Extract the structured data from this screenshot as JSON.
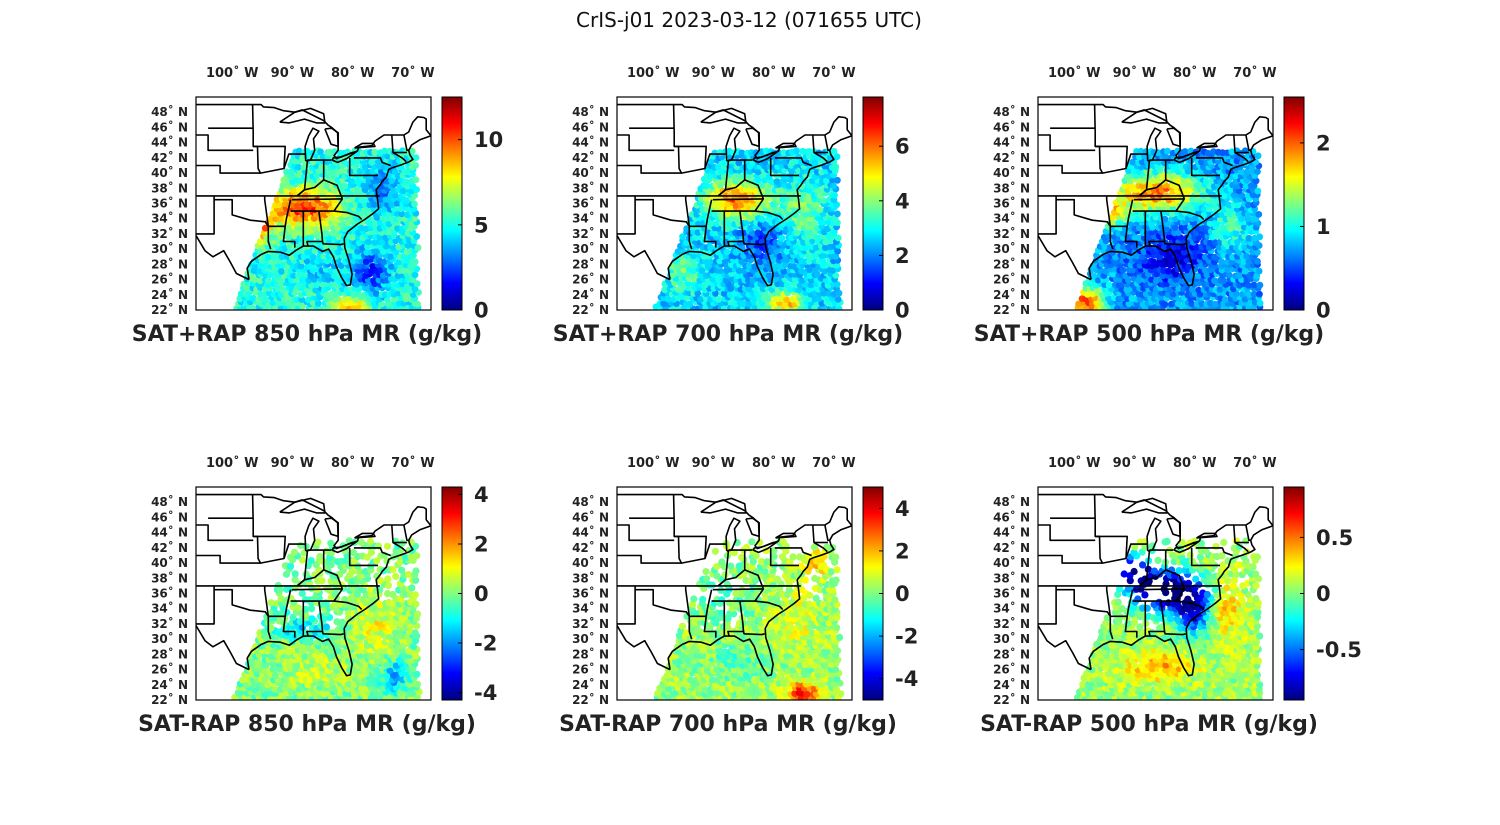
{
  "figure": {
    "title": "CrIS-j01 2023-03-12 (071655 UTC)"
  },
  "map_extent": {
    "lon_min": -106,
    "lon_max": -67,
    "lat_min": 22,
    "lat_max": 50
  },
  "chart_data": [
    {
      "type": "heatmap",
      "title": "SAT+RAP 850 hPa MR (g/kg)",
      "longitude_ticks": [
        "100˚ W",
        "90˚ W",
        "80˚ W",
        "70˚ W"
      ],
      "latitude_ticks": [
        "48˚ N",
        "46˚ N",
        "44˚ N",
        "42˚ N",
        "40˚ N",
        "38˚ N",
        "36˚ N",
        "34˚ N",
        "32˚ N",
        "30˚ N",
        "28˚ N",
        "26˚ N",
        "24˚ N",
        "22˚ N"
      ],
      "colorbar": {
        "min": 0,
        "max": 12.5,
        "ticks": [
          0,
          5,
          10
        ],
        "tick_labels": [
          "0",
          "5",
          "10"
        ]
      },
      "field": {
        "base": 5.0,
        "blobs": [
          {
            "lon": -88,
            "lat": 35.5,
            "rlon": 6,
            "rlat": 2.5,
            "amp": 5.5
          },
          {
            "lon": -96,
            "lat": 33.5,
            "rlon": 2.5,
            "rlat": 2.5,
            "amp": 6.5
          },
          {
            "lon": -75,
            "lat": 38,
            "rlon": 3,
            "rlat": 3,
            "amp": -2
          },
          {
            "lon": -77,
            "lat": 27,
            "rlon": 3,
            "rlat": 3,
            "amp": -3
          },
          {
            "lon": -85,
            "lat": 27,
            "rlon": 4,
            "rlat": 2,
            "amp": -1
          },
          {
            "lon": -80,
            "lat": 22.5,
            "rlon": 3,
            "rlat": 1.5,
            "amp": 4
          }
        ]
      }
    },
    {
      "type": "heatmap",
      "title": "SAT+RAP 700 hPa MR (g/kg)",
      "longitude_ticks": [
        "100˚ W",
        "90˚ W",
        "80˚ W",
        "70˚ W"
      ],
      "latitude_ticks": [
        "48˚ N",
        "46˚ N",
        "44˚ N",
        "42˚ N",
        "40˚ N",
        "38˚ N",
        "36˚ N",
        "34˚ N",
        "32˚ N",
        "30˚ N",
        "28˚ N",
        "26˚ N",
        "24˚ N",
        "22˚ N"
      ],
      "colorbar": {
        "min": 0,
        "max": 7.8,
        "ticks": [
          0,
          2,
          4,
          6
        ],
        "tick_labels": [
          "0",
          "2",
          "4",
          "6"
        ]
      },
      "field": {
        "base": 2.6,
        "blobs": [
          {
            "lon": -86,
            "lat": 36.5,
            "rlon": 5,
            "rlat": 2.5,
            "amp": 3.5
          },
          {
            "lon": -82,
            "lat": 31,
            "rlon": 4,
            "rlat": 3,
            "amp": -1.2
          },
          {
            "lon": -75,
            "lat": 35,
            "rlon": 4,
            "rlat": 4,
            "amp": 1.2
          },
          {
            "lon": -78,
            "lat": 23,
            "rlon": 3,
            "rlat": 1.5,
            "amp": 3
          },
          {
            "lon": -95,
            "lat": 27,
            "rlon": 3,
            "rlat": 3,
            "amp": 1.0
          }
        ]
      }
    },
    {
      "type": "heatmap",
      "title": "SAT+RAP 500 hPa MR (g/kg)",
      "longitude_ticks": [
        "100˚ W",
        "90˚ W",
        "80˚ W",
        "70˚ W"
      ],
      "latitude_ticks": [
        "48˚ N",
        "46˚ N",
        "44˚ N",
        "42˚ N",
        "40˚ N",
        "38˚ N",
        "36˚ N",
        "34˚ N",
        "32˚ N",
        "30˚ N",
        "28˚ N",
        "26˚ N",
        "24˚ N",
        "22˚ N"
      ],
      "colorbar": {
        "min": 0,
        "max": 2.55,
        "ticks": [
          0,
          1,
          2
        ],
        "tick_labels": [
          "0",
          "1",
          "2"
        ]
      },
      "field": {
        "base": 0.7,
        "blobs": [
          {
            "lon": -86,
            "lat": 37.5,
            "rlon": 7,
            "rlat": 2.5,
            "amp": 1.3
          },
          {
            "lon": -94,
            "lat": 35,
            "rlon": 3,
            "rlat": 2,
            "amp": 0.9
          },
          {
            "lon": -84,
            "lat": 29,
            "rlon": 5,
            "rlat": 3,
            "amp": -0.5
          },
          {
            "lon": -98,
            "lat": 23,
            "rlon": 3,
            "rlat": 2,
            "amp": 1.4
          },
          {
            "lon": -74,
            "lat": 33,
            "rlon": 3,
            "rlat": 3,
            "amp": 0.4
          }
        ]
      }
    },
    {
      "type": "heatmap",
      "title": "SAT-RAP 850 hPa MR (g/kg)",
      "longitude_ticks": [
        "100˚ W",
        "90˚ W",
        "80˚ W",
        "70˚ W"
      ],
      "latitude_ticks": [
        "48˚ N",
        "46˚ N",
        "44˚ N",
        "42˚ N",
        "40˚ N",
        "38˚ N",
        "36˚ N",
        "34˚ N",
        "32˚ N",
        "30˚ N",
        "28˚ N",
        "26˚ N",
        "24˚ N",
        "22˚ N"
      ],
      "colorbar": {
        "min": -4.3,
        "max": 4.3,
        "ticks": [
          -4,
          -2,
          0,
          2,
          4
        ],
        "tick_labels": [
          "-4",
          "-2",
          "0",
          "2",
          "4"
        ]
      },
      "field": {
        "base": 0.0,
        "blobs": [
          {
            "lon": -88,
            "lat": 31.5,
            "rlon": 5,
            "rlat": 1.5,
            "amp": -1.4
          },
          {
            "lon": -76,
            "lat": 32,
            "rlon": 4,
            "rlat": 4,
            "amp": 0.9
          },
          {
            "lon": -86,
            "lat": 26,
            "rlon": 5,
            "rlat": 2,
            "amp": 0.6
          },
          {
            "lon": -73,
            "lat": 25,
            "rlon": 2,
            "rlat": 2,
            "amp": -2.0
          },
          {
            "lon": -92,
            "lat": 38,
            "rlon": 4,
            "rlat": 3,
            "amp": -0.6
          }
        ]
      }
    },
    {
      "type": "heatmap",
      "title": "SAT-RAP 700 hPa MR (g/kg)",
      "longitude_ticks": [
        "100˚ W",
        "90˚ W",
        "80˚ W",
        "70˚ W"
      ],
      "latitude_ticks": [
        "48˚ N",
        "46˚ N",
        "44˚ N",
        "42˚ N",
        "40˚ N",
        "38˚ N",
        "36˚ N",
        "34˚ N",
        "32˚ N",
        "30˚ N",
        "28˚ N",
        "26˚ N",
        "24˚ N",
        "22˚ N"
      ],
      "colorbar": {
        "min": -5.0,
        "max": 5.0,
        "ticks": [
          -4,
          -2,
          0,
          2,
          4
        ],
        "tick_labels": [
          "-4",
          "-2",
          "0",
          "2",
          "4"
        ]
      },
      "field": {
        "base": 0.2,
        "blobs": [
          {
            "lon": -75,
            "lat": 23,
            "rlon": 3,
            "rlat": 1.5,
            "amp": 3.5
          },
          {
            "lon": -76,
            "lat": 33,
            "rlon": 4,
            "rlat": 4,
            "amp": 0.8
          },
          {
            "lon": -88,
            "lat": 36,
            "rlon": 6,
            "rlat": 3,
            "amp": -0.6
          },
          {
            "lon": -86,
            "lat": 27,
            "rlon": 5,
            "rlat": 2,
            "amp": -0.7
          },
          {
            "lon": -73,
            "lat": 40,
            "rlon": 2,
            "rlat": 2,
            "amp": 1.5
          }
        ]
      }
    },
    {
      "type": "heatmap",
      "title": "SAT-RAP 500 hPa MR (g/kg)",
      "longitude_ticks": [
        "100˚ W",
        "90˚ W",
        "80˚ W",
        "70˚ W"
      ],
      "latitude_ticks": [
        "48˚ N",
        "46˚ N",
        "44˚ N",
        "42˚ N",
        "40˚ N",
        "38˚ N",
        "36˚ N",
        "34˚ N",
        "32˚ N",
        "30˚ N",
        "28˚ N",
        "26˚ N",
        "24˚ N",
        "22˚ N"
      ],
      "colorbar": {
        "min": -0.95,
        "max": 0.95,
        "ticks": [
          -0.5,
          0,
          0.5
        ],
        "tick_labels": [
          "-0.5",
          "0",
          "0.5"
        ]
      },
      "field": {
        "base": 0.05,
        "blobs": [
          {
            "lon": -85,
            "lat": 36.5,
            "rlon": 5,
            "rlat": 2.5,
            "amp": -1.2
          },
          {
            "lon": -80,
            "lat": 34,
            "rlon": 3,
            "rlat": 3,
            "amp": -0.9
          },
          {
            "lon": -90,
            "lat": 39,
            "rlon": 3,
            "rlat": 2,
            "amp": -0.9
          },
          {
            "lon": -86,
            "lat": 26.5,
            "rlon": 6,
            "rlat": 2,
            "amp": 0.35
          },
          {
            "lon": -75,
            "lat": 34,
            "rlon": 3,
            "rlat": 4,
            "amp": 0.3
          }
        ]
      }
    }
  ]
}
